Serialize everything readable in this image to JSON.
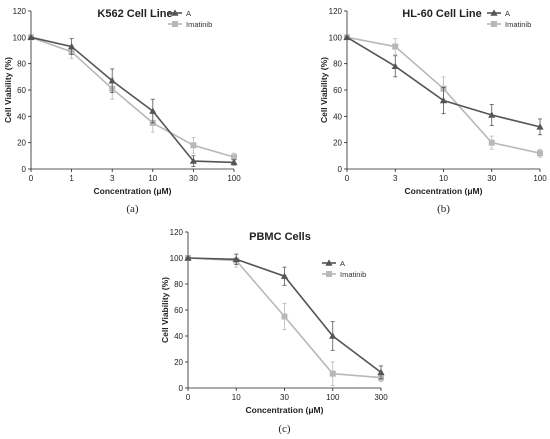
{
  "chart_data": [
    {
      "type": "line",
      "panel_label": "(a)",
      "title": "K562 Cell Line",
      "xlabel": "Concentration (μM)",
      "ylabel": "Cell Viability (%)",
      "ylim": [
        0,
        120
      ],
      "yticks": [
        "0",
        "20",
        "40",
        "60",
        "80",
        "100",
        "120"
      ],
      "categories": [
        "0",
        "1",
        "3",
        "10",
        "30",
        "100"
      ],
      "legend_position": "top-right",
      "series": [
        {
          "name": "A",
          "color": "#555555",
          "marker": "triangle",
          "values": [
            100,
            93,
            67,
            44,
            6,
            5
          ],
          "errors": [
            0,
            6,
            9,
            9,
            4,
            2
          ]
        },
        {
          "name": "Imatinib",
          "color": "#b8b8b8",
          "marker": "square",
          "values": [
            100,
            89,
            61,
            35,
            18,
            9
          ],
          "errors": [
            0,
            5,
            8,
            7,
            6,
            3
          ]
        }
      ]
    },
    {
      "type": "line",
      "panel_label": "(b)",
      "title": "HL-60 Cell Line",
      "xlabel": "Concentration (μM)",
      "ylabel": "Cell Viability (%)",
      "ylim": [
        0,
        120
      ],
      "yticks": [
        "0",
        "20",
        "40",
        "60",
        "80",
        "100",
        "120"
      ],
      "categories": [
        "0",
        "3",
        "10",
        "30",
        "100"
      ],
      "legend_position": "top-right",
      "series": [
        {
          "name": "A",
          "color": "#555555",
          "marker": "triangle",
          "values": [
            100,
            78,
            52,
            41,
            32
          ],
          "errors": [
            0,
            8,
            10,
            8,
            6
          ]
        },
        {
          "name": "Imatinib",
          "color": "#b8b8b8",
          "marker": "square",
          "values": [
            100,
            93,
            61,
            20,
            12
          ],
          "errors": [
            0,
            6,
            9,
            5,
            3
          ]
        }
      ]
    },
    {
      "type": "line",
      "panel_label": "(c)",
      "title": "PBMC Cells",
      "xlabel": "Concentration (μM)",
      "ylabel": "Cell Viability (%)",
      "ylim": [
        0,
        120
      ],
      "yticks": [
        "0",
        "20",
        "40",
        "60",
        "80",
        "100",
        "120"
      ],
      "categories": [
        "0",
        "10",
        "30",
        "100",
        "300"
      ],
      "legend_position": "top-right",
      "series": [
        {
          "name": "A",
          "color": "#555555",
          "marker": "triangle",
          "values": [
            100,
            99,
            86,
            40,
            12
          ],
          "errors": [
            0,
            4,
            7,
            11,
            5
          ]
        },
        {
          "name": "Imatinib",
          "color": "#b8b8b8",
          "marker": "square",
          "values": [
            100,
            98,
            55,
            11,
            8
          ],
          "errors": [
            0,
            5,
            10,
            9,
            3
          ]
        }
      ]
    }
  ]
}
